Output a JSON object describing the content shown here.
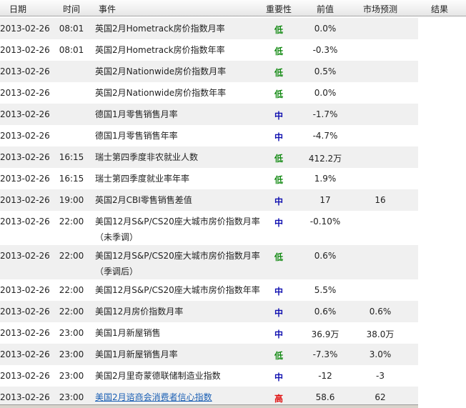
{
  "header": {
    "date": "日期",
    "time": "时间",
    "event": "事件",
    "importance": "重要性",
    "previous": "前值",
    "forecast": "市场预测",
    "result": "结果"
  },
  "importance_colors": {
    "低": "#138a13",
    "中": "#1010b0",
    "高": "#e01010"
  },
  "rows": [
    {
      "date": "2013-02-26",
      "time": "08:01",
      "event": "英国2月Hometrack房价指数月率",
      "importance": "低",
      "previous": "0.0%",
      "forecast": "",
      "result": ""
    },
    {
      "date": "2013-02-26",
      "time": "08:01",
      "event": "英国2月Hometrack房价指数年率",
      "importance": "低",
      "previous": "-0.3%",
      "forecast": "",
      "result": ""
    },
    {
      "date": "2013-02-26",
      "time": "",
      "event": "英国2月Nationwide房价指数月率",
      "importance": "低",
      "previous": "0.5%",
      "forecast": "",
      "result": ""
    },
    {
      "date": "2013-02-26",
      "time": "",
      "event": "英国2月Nationwide房价指数年率",
      "importance": "低",
      "previous": "0.0%",
      "forecast": "",
      "result": ""
    },
    {
      "date": "2013-02-26",
      "time": "",
      "event": "德国1月零售销售月率",
      "importance": "中",
      "previous": "-1.7%",
      "forecast": "",
      "result": ""
    },
    {
      "date": "2013-02-26",
      "time": "",
      "event": "德国1月零售销售年率",
      "importance": "中",
      "previous": "-4.7%",
      "forecast": "",
      "result": ""
    },
    {
      "date": "2013-02-26",
      "time": "16:15",
      "event": "瑞士第四季度非农就业人数",
      "importance": "低",
      "previous": "412.2万",
      "forecast": "",
      "result": ""
    },
    {
      "date": "2013-02-26",
      "time": "16:15",
      "event": "瑞士第四季度就业率年率",
      "importance": "低",
      "previous": "1.9%",
      "forecast": "",
      "result": ""
    },
    {
      "date": "2013-02-26",
      "time": "19:00",
      "event": "英国2月CBI零售销售差值",
      "importance": "中",
      "previous": "17",
      "forecast": "16",
      "result": ""
    },
    {
      "date": "2013-02-26",
      "time": "22:00",
      "event": "美国12月S&P/CS20座大城市房价指数月率（未季调）",
      "importance": "中",
      "previous": "-0.10%",
      "forecast": "",
      "result": ""
    },
    {
      "date": "2013-02-26",
      "time": "22:00",
      "event": "美国12月S&P/CS20座大城市房价指数月率（季调后）",
      "importance": "低",
      "previous": "0.6%",
      "forecast": "",
      "result": ""
    },
    {
      "date": "2013-02-26",
      "time": "22:00",
      "event": "美国12月S&P/CS20座大城市房价指数年率",
      "importance": "中",
      "previous": "5.5%",
      "forecast": "",
      "result": ""
    },
    {
      "date": "2013-02-26",
      "time": "22:00",
      "event": "美国12月房价指数月率",
      "importance": "中",
      "previous": "0.6%",
      "forecast": "0.6%",
      "result": ""
    },
    {
      "date": "2013-02-26",
      "time": "23:00",
      "event": "美国1月新屋销售",
      "importance": "中",
      "previous": "36.9万",
      "forecast": "38.0万",
      "result": ""
    },
    {
      "date": "2013-02-26",
      "time": "23:00",
      "event": "美国1月新屋销售月率",
      "importance": "低",
      "previous": "-7.3%",
      "forecast": "3.0%",
      "result": ""
    },
    {
      "date": "2013-02-26",
      "time": "23:00",
      "event": "美国2月里奇蒙德联储制造业指数",
      "importance": "中",
      "previous": "-12",
      "forecast": "-3",
      "result": ""
    },
    {
      "date": "2013-02-26",
      "time": "23:00",
      "event": "美国2月谘商会消费者信心指数",
      "importance": "高",
      "previous": "58.6",
      "forecast": "62",
      "result": "",
      "link": true
    }
  ]
}
